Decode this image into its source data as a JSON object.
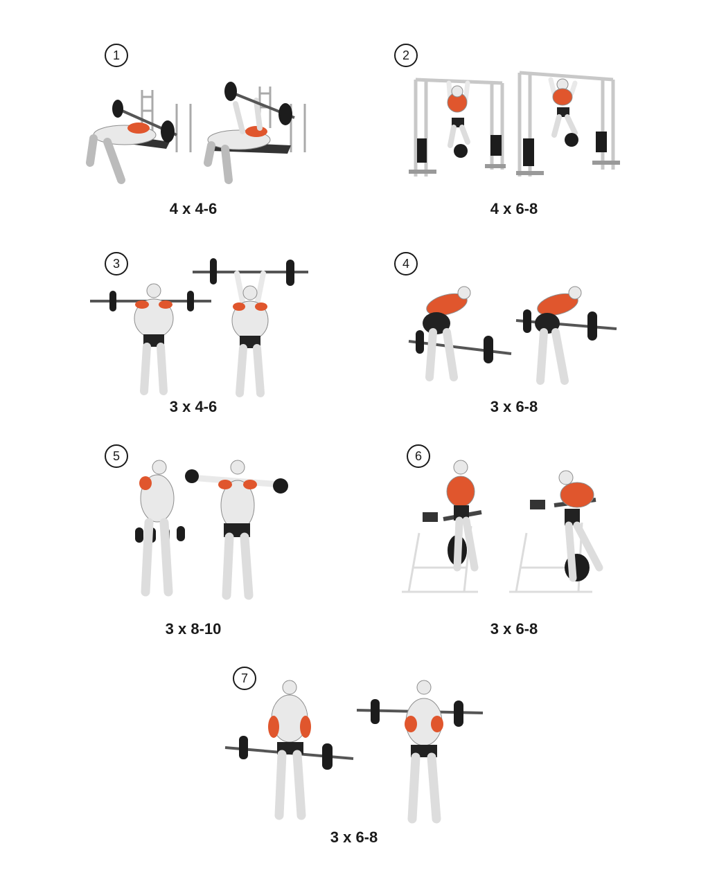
{
  "colors": {
    "muscle": "#e0562d",
    "body": "#e9e9e9",
    "outline": "#8c8c8c",
    "plate": "#1c1c1c",
    "shorts": "#222222"
  },
  "exercises": [
    {
      "number": "1",
      "scheme": "4 x 4-6",
      "icon": "bench-press-icon"
    },
    {
      "number": "2",
      "scheme": "4 x 6-8",
      "icon": "pull-up-icon"
    },
    {
      "number": "3",
      "scheme": "3 x 4-6",
      "icon": "overhead-press-icon"
    },
    {
      "number": "4",
      "scheme": "3 x 6-8",
      "icon": "bent-over-row-icon"
    },
    {
      "number": "5",
      "scheme": "3 x 8-10",
      "icon": "lateral-raise-icon"
    },
    {
      "number": "6",
      "scheme": "3 x 6-8",
      "icon": "weighted-dip-icon"
    },
    {
      "number": "7",
      "scheme": "3 x 6-8",
      "icon": "barbell-curl-icon"
    }
  ]
}
